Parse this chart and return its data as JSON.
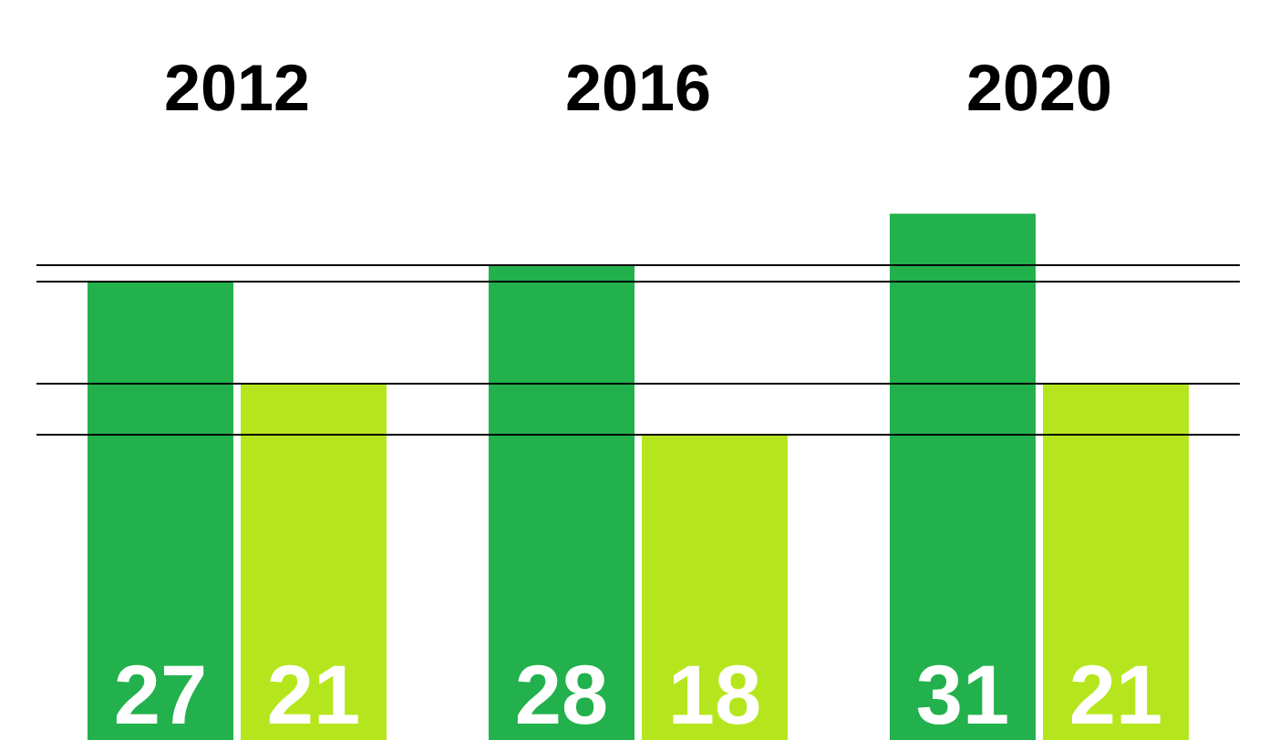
{
  "chart_data": {
    "type": "bar",
    "categories": [
      "2012",
      "2016",
      "2020"
    ],
    "series": [
      {
        "color": "#22b14c",
        "values": [
          27,
          28,
          31
        ]
      },
      {
        "color": "#b5e61d",
        "values": [
          21,
          18,
          21
        ]
      }
    ],
    "data_labels": true,
    "ref_lines": [
      {
        "axis": "y",
        "value": 28
      },
      {
        "axis": "y",
        "value": 27
      },
      {
        "axis": "y",
        "value": 21
      },
      {
        "axis": "y",
        "value": 18
      }
    ]
  }
}
